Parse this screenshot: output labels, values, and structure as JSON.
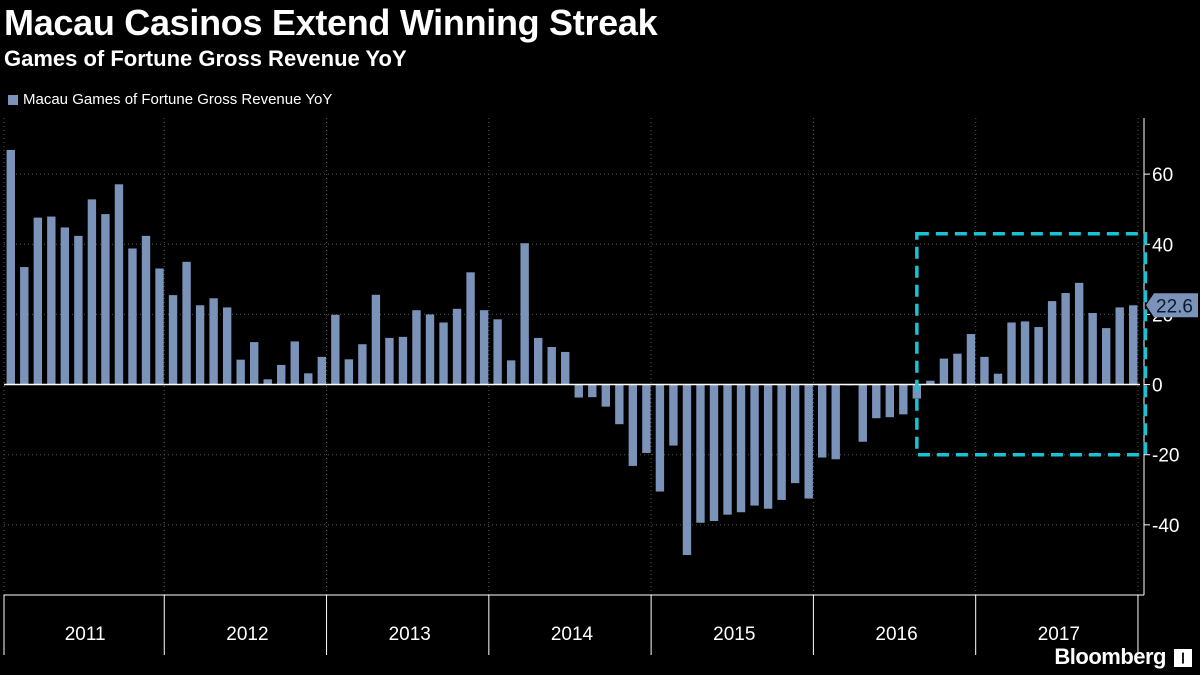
{
  "chart_data": {
    "type": "bar",
    "title": "Macau Casinos Extend Winning Streak",
    "subtitle": "Games of Fortune Gross Revenue YoY",
    "series": [
      {
        "name": "Macau Games of Fortune Gross Revenue YoY",
        "color": "#7b93b8",
        "values": [
          66.9,
          33.5,
          47.6,
          47.9,
          44.8,
          42.4,
          52.8,
          48.6,
          57.1,
          38.8,
          42.4,
          33.1,
          25.5,
          35.0,
          22.6,
          24.6,
          22.0,
          7.1,
          12.1,
          1.5,
          5.6,
          12.3,
          3.2,
          7.9,
          19.9,
          7.2,
          11.5,
          25.6,
          13.3,
          13.6,
          21.2,
          20.0,
          17.7,
          21.6,
          32.0,
          21.2,
          18.6,
          6.9,
          40.3,
          13.3,
          10.7,
          9.3,
          -3.7,
          -3.6,
          -6.3,
          -11.3,
          -23.2,
          -19.5,
          -30.5,
          -17.4,
          -48.6,
          -39.4,
          -38.9,
          -37.1,
          -36.4,
          -34.5,
          -35.4,
          -32.9,
          -28.1,
          -32.5,
          -20.8,
          -21.3,
          -0.1,
          -16.3,
          -9.6,
          -9.3,
          -8.5,
          -4.0,
          1.1,
          7.4,
          8.8,
          14.4,
          7.9,
          3.1,
          17.7,
          18.0,
          16.4,
          23.8,
          26.1,
          29.0,
          20.4,
          16.1,
          22.0,
          22.6
        ]
      }
    ],
    "years": [
      "2011",
      "2012",
      "2013",
      "2014",
      "2015",
      "2016",
      "2017"
    ],
    "months_per_year": 12,
    "ylim": [
      -60,
      76
    ],
    "yticks": [
      -40,
      -20,
      0,
      20,
      40,
      60
    ],
    "last_value_label": "22.6",
    "grid": true,
    "highlight_box": {
      "x_from_index": 67.5,
      "x_to_index": 83.5,
      "y_top": 43,
      "y_bottom": -20,
      "color": "#19c3d3"
    }
  },
  "legend_label": "Macau Games of Fortune Gross Revenue YoY",
  "brand": "Bloomberg",
  "brand_mark": "❙",
  "colors": {
    "background": "#000000",
    "bar": "#7b93b8",
    "grid": "#555555",
    "highlight": "#19c3d3",
    "text": "#ffffff"
  }
}
